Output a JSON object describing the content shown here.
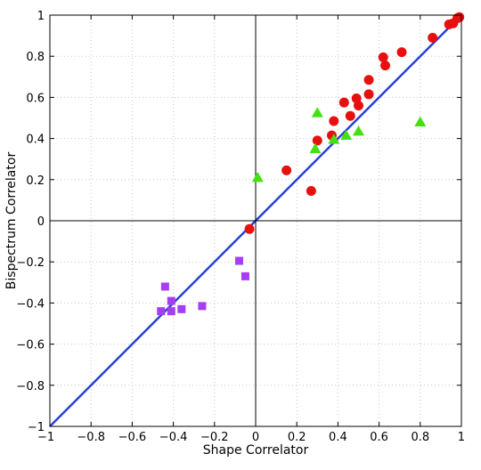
{
  "chart_data": {
    "type": "scatter",
    "title": "",
    "xlabel": "Shape Correlator",
    "ylabel": "Bispectrum Correlator",
    "xlim": [
      -1,
      1
    ],
    "ylim": [
      -1,
      1
    ],
    "x_ticks": [
      -1,
      -0.8,
      -0.6,
      -0.4,
      -0.2,
      0,
      0.2,
      0.4,
      0.6,
      0.8,
      1
    ],
    "y_ticks": [
      -1,
      -0.8,
      -0.6,
      -0.4,
      -0.2,
      0,
      0.2,
      0.4,
      0.6,
      0.8,
      1
    ],
    "x_tick_labels": [
      "−1",
      "−0.8",
      "−0.6",
      "−0.4",
      "−0.2",
      "0",
      "0.2",
      "0.4",
      "0.6",
      "0.8",
      "1"
    ],
    "y_tick_labels": [
      "−1",
      "−0.8",
      "−0.6",
      "−0.4",
      "−0.2",
      "0",
      "0.2",
      "0.4",
      "0.6",
      "0.8",
      "1"
    ],
    "grid": true,
    "grid_style": "dotted",
    "reference_lines": [
      {
        "type": "diagonal",
        "from": [
          -1,
          -1
        ],
        "to": [
          1,
          1
        ],
        "color": "#2a3fd6"
      },
      {
        "type": "horizontal",
        "y": 0,
        "color": "#000000"
      },
      {
        "type": "vertical",
        "x": 0,
        "color": "#000000"
      }
    ],
    "series": [
      {
        "marker": "circle",
        "color": "#e8100f",
        "points": [
          [
            -0.03,
            -0.04
          ],
          [
            0.15,
            0.245
          ],
          [
            0.27,
            0.145
          ],
          [
            0.3,
            0.39
          ],
          [
            0.37,
            0.415
          ],
          [
            0.38,
            0.485
          ],
          [
            0.43,
            0.575
          ],
          [
            0.46,
            0.51
          ],
          [
            0.49,
            0.595
          ],
          [
            0.5,
            0.56
          ],
          [
            0.55,
            0.615
          ],
          [
            0.55,
            0.685
          ],
          [
            0.62,
            0.795
          ],
          [
            0.63,
            0.755
          ],
          [
            0.71,
            0.82
          ],
          [
            0.86,
            0.89
          ],
          [
            0.94,
            0.955
          ],
          [
            0.96,
            0.96
          ],
          [
            0.98,
            0.985
          ],
          [
            0.99,
            0.99
          ]
        ]
      },
      {
        "marker": "triangle",
        "color": "#44e012",
        "points": [
          [
            0.01,
            0.21
          ],
          [
            0.29,
            0.35
          ],
          [
            0.3,
            0.525
          ],
          [
            0.38,
            0.395
          ],
          [
            0.44,
            0.415
          ],
          [
            0.5,
            0.435
          ],
          [
            0.8,
            0.48
          ]
        ]
      },
      {
        "marker": "square",
        "color": "#a63df0",
        "points": [
          [
            -0.44,
            -0.32
          ],
          [
            -0.46,
            -0.44
          ],
          [
            -0.41,
            -0.39
          ],
          [
            -0.41,
            -0.44
          ],
          [
            -0.36,
            -0.43
          ],
          [
            -0.26,
            -0.415
          ],
          [
            -0.08,
            -0.195
          ],
          [
            -0.05,
            -0.27
          ]
        ]
      }
    ]
  }
}
